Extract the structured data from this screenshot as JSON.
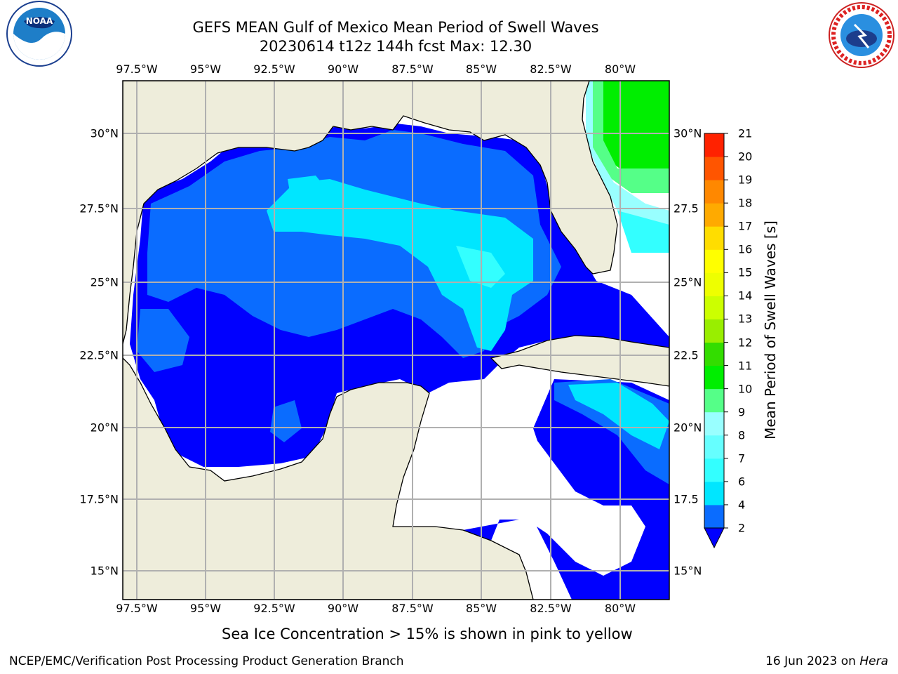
{
  "header": {
    "title": "GEFS MEAN Gulf of Mexico Mean Period of Swell Waves",
    "subtitle": "20230614 t12z 144h fcst   Max: 12.30"
  },
  "logos": {
    "left": "NOAA",
    "right": "NATIONAL WEATHER SERVICE"
  },
  "map": {
    "lon_labels": [
      "97.5°W",
      "95°W",
      "92.5°W",
      "90°W",
      "87.5°W",
      "85°W",
      "82.5°W",
      "80°W"
    ],
    "lat_labels": [
      "30°N",
      "27.5°N",
      "25°N",
      "22.5°N",
      "20°N",
      "17.5°N",
      "15°N"
    ],
    "lat_labels_right": [
      "30°N",
      "27.5",
      "25°N",
      "22.5",
      "20°N",
      "17.5",
      "15°N"
    ],
    "colors": {
      "land": "#eeeddb",
      "no_data": "#ffffff",
      "grid": "#b0b0b0",
      "coast": "#000000"
    }
  },
  "colorbar": {
    "label": "Mean Period of Swell Waves [s]",
    "ticks": [
      "2",
      "4",
      "6",
      "7",
      "8",
      "9",
      "10",
      "11",
      "12",
      "13",
      "14",
      "15",
      "16",
      "17",
      "18",
      "19",
      "20",
      "21"
    ],
    "colors": [
      "#0a6cff",
      "#00e6ff",
      "#33ffff",
      "#66ffff",
      "#99ffff",
      "#55ff88",
      "#00ee00",
      "#33dd00",
      "#99ee00",
      "#ccff00",
      "#eeff00",
      "#ffff00",
      "#ffdd00",
      "#ffaa00",
      "#ff8800",
      "#ff5500",
      "#ff2200",
      "#ff0000"
    ],
    "under_color": "#0000ff",
    "extend": "min"
  },
  "chart_data": {
    "type": "heatmap",
    "title": "GEFS MEAN Gulf of Mexico Mean Period of Swell Waves",
    "variable": "Mean Period of Swell Waves [s]",
    "max": 12.3,
    "init": "20230614 t12z",
    "forecast_hour": "144h",
    "lon_range": [
      -98,
      -78
    ],
    "lat_range": [
      14,
      32
    ],
    "colorbar_range": [
      2,
      21
    ]
  },
  "footer": {
    "note": "Sea Ice Concentration > 15% is shown in pink to yellow",
    "left": "NCEP/EMC/Verification Post Processing Product Generation Branch",
    "right_date": "16 Jun 2023 on",
    "right_host": "Hera"
  }
}
